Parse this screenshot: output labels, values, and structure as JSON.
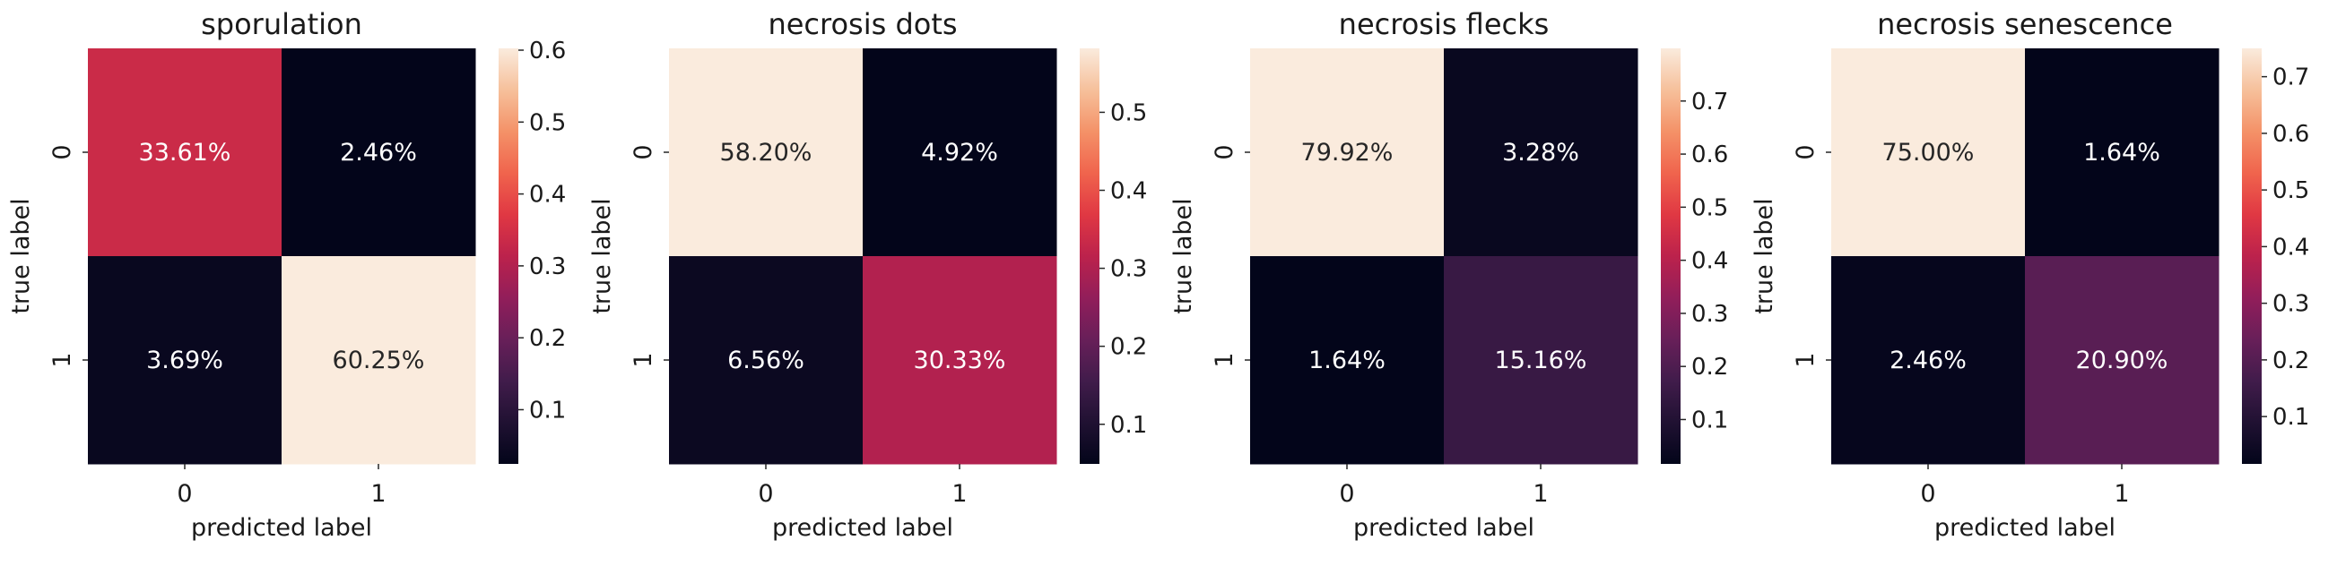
{
  "chart_data": [
    {
      "type": "heatmap",
      "title": "sporulation",
      "xlabel": "predicted label",
      "ylabel": "true label",
      "x_categories": [
        "0",
        "1"
      ],
      "y_categories": [
        "0",
        "1"
      ],
      "values": [
        [
          0.3361,
          0.0246
        ],
        [
          0.0369,
          0.6025
        ]
      ],
      "annotations": [
        [
          "33.61%",
          "2.46%"
        ],
        [
          "3.69%",
          "60.25%"
        ]
      ],
      "colorbar": {
        "range": [
          0.0246,
          0.6025
        ],
        "ticks": [
          0.1,
          0.2,
          0.3,
          0.4,
          0.5,
          0.6
        ],
        "tick_labels": [
          "0.1",
          "0.2",
          "0.3",
          "0.4",
          "0.5",
          "0.6"
        ]
      },
      "colormap": "rocket"
    },
    {
      "type": "heatmap",
      "title": "necrosis dots",
      "xlabel": "predicted label",
      "ylabel": "true label",
      "x_categories": [
        "0",
        "1"
      ],
      "y_categories": [
        "0",
        "1"
      ],
      "values": [
        [
          0.582,
          0.0492
        ],
        [
          0.0656,
          0.3033
        ]
      ],
      "annotations": [
        [
          "58.20%",
          "4.92%"
        ],
        [
          "6.56%",
          "30.33%"
        ]
      ],
      "colorbar": {
        "range": [
          0.0492,
          0.582
        ],
        "ticks": [
          0.1,
          0.2,
          0.3,
          0.4,
          0.5
        ],
        "tick_labels": [
          "0.1",
          "0.2",
          "0.3",
          "0.4",
          "0.5"
        ]
      },
      "colormap": "rocket"
    },
    {
      "type": "heatmap",
      "title": "necrosis flecks",
      "xlabel": "predicted label",
      "ylabel": "true label",
      "x_categories": [
        "0",
        "1"
      ],
      "y_categories": [
        "0",
        "1"
      ],
      "values": [
        [
          0.7992,
          0.0328
        ],
        [
          0.0164,
          0.1516
        ]
      ],
      "annotations": [
        [
          "79.92%",
          "3.28%"
        ],
        [
          "1.64%",
          "15.16%"
        ]
      ],
      "colorbar": {
        "range": [
          0.0164,
          0.7992
        ],
        "ticks": [
          0.1,
          0.2,
          0.3,
          0.4,
          0.5,
          0.6,
          0.7
        ],
        "tick_labels": [
          "0.1",
          "0.2",
          "0.3",
          "0.4",
          "0.5",
          "0.6",
          "0.7"
        ]
      },
      "colormap": "rocket"
    },
    {
      "type": "heatmap",
      "title": "necrosis senescence",
      "xlabel": "predicted label",
      "ylabel": "true label",
      "x_categories": [
        "0",
        "1"
      ],
      "y_categories": [
        "0",
        "1"
      ],
      "values": [
        [
          0.75,
          0.0164
        ],
        [
          0.0246,
          0.209
        ]
      ],
      "annotations": [
        [
          "75.00%",
          "1.64%"
        ],
        [
          "2.46%",
          "20.90%"
        ]
      ],
      "colorbar": {
        "range": [
          0.0164,
          0.75
        ],
        "ticks": [
          0.1,
          0.2,
          0.3,
          0.4,
          0.5,
          0.6,
          0.7
        ],
        "tick_labels": [
          "0.1",
          "0.2",
          "0.3",
          "0.4",
          "0.5",
          "0.6",
          "0.7"
        ]
      },
      "colormap": "rocket"
    }
  ]
}
